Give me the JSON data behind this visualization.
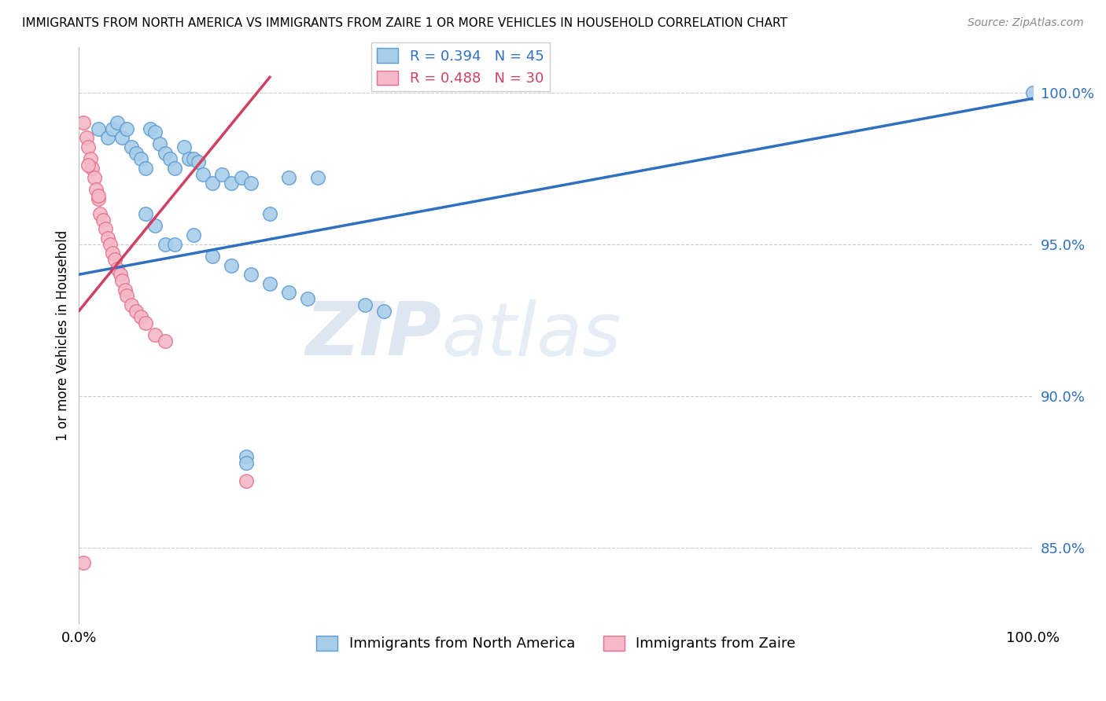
{
  "title": "IMMIGRANTS FROM NORTH AMERICA VS IMMIGRANTS FROM ZAIRE 1 OR MORE VEHICLES IN HOUSEHOLD CORRELATION CHART",
  "source": "Source: ZipAtlas.com",
  "ylabel": "1 or more Vehicles in Household",
  "ytick_labels": [
    "100.0%",
    "95.0%",
    "90.0%",
    "85.0%"
  ],
  "ytick_values": [
    1.0,
    0.95,
    0.9,
    0.85
  ],
  "xlim": [
    0.0,
    1.0
  ],
  "ylim": [
    0.825,
    1.015
  ],
  "legend_blue_r": "R = 0.394",
  "legend_blue_n": "N = 45",
  "legend_pink_r": "R = 0.488",
  "legend_pink_n": "N = 30",
  "legend_blue_label": "Immigrants from North America",
  "legend_pink_label": "Immigrants from Zaire",
  "blue_color": "#a8cde8",
  "pink_color": "#f5b8c8",
  "blue_edge_color": "#5b9bd5",
  "pink_edge_color": "#e8708a",
  "blue_line_color": "#3070c0",
  "pink_line_color": "#d04060",
  "watermark_zip": "ZIP",
  "watermark_atlas": "atlas",
  "blue_x": [
    0.02,
    0.03,
    0.035,
    0.04,
    0.045,
    0.05,
    0.055,
    0.06,
    0.065,
    0.07,
    0.075,
    0.08,
    0.085,
    0.09,
    0.095,
    0.1,
    0.11,
    0.115,
    0.12,
    0.125,
    0.13,
    0.14,
    0.15,
    0.16,
    0.17,
    0.18,
    0.2,
    0.22,
    0.25,
    0.07,
    0.08,
    0.09,
    0.1,
    0.12,
    0.14,
    0.16,
    0.18,
    0.2,
    0.22,
    0.24,
    0.3,
    0.32,
    0.175,
    0.175,
    1.0
  ],
  "blue_y": [
    0.988,
    0.985,
    0.988,
    0.99,
    0.985,
    0.988,
    0.982,
    0.98,
    0.978,
    0.975,
    0.988,
    0.987,
    0.983,
    0.98,
    0.978,
    0.975,
    0.982,
    0.978,
    0.978,
    0.977,
    0.973,
    0.97,
    0.973,
    0.97,
    0.972,
    0.97,
    0.96,
    0.972,
    0.972,
    0.96,
    0.956,
    0.95,
    0.95,
    0.953,
    0.946,
    0.943,
    0.94,
    0.937,
    0.934,
    0.932,
    0.93,
    0.928,
    0.88,
    0.878,
    1.0
  ],
  "pink_x": [
    0.005,
    0.008,
    0.01,
    0.012,
    0.014,
    0.016,
    0.018,
    0.02,
    0.022,
    0.025,
    0.028,
    0.03,
    0.033,
    0.035,
    0.038,
    0.04,
    0.043,
    0.045,
    0.048,
    0.05,
    0.055,
    0.06,
    0.065,
    0.07,
    0.08,
    0.09,
    0.01,
    0.02,
    0.175,
    0.005
  ],
  "pink_y": [
    0.99,
    0.985,
    0.982,
    0.978,
    0.975,
    0.972,
    0.968,
    0.965,
    0.96,
    0.958,
    0.955,
    0.952,
    0.95,
    0.947,
    0.945,
    0.942,
    0.94,
    0.938,
    0.935,
    0.933,
    0.93,
    0.928,
    0.926,
    0.924,
    0.92,
    0.918,
    0.976,
    0.966,
    0.872,
    0.845
  ],
  "blue_trend_x": [
    0.0,
    1.0
  ],
  "blue_trend_y": [
    0.94,
    0.998
  ],
  "pink_trend_x": [
    0.0,
    0.2
  ],
  "pink_trend_y": [
    0.928,
    1.005
  ]
}
